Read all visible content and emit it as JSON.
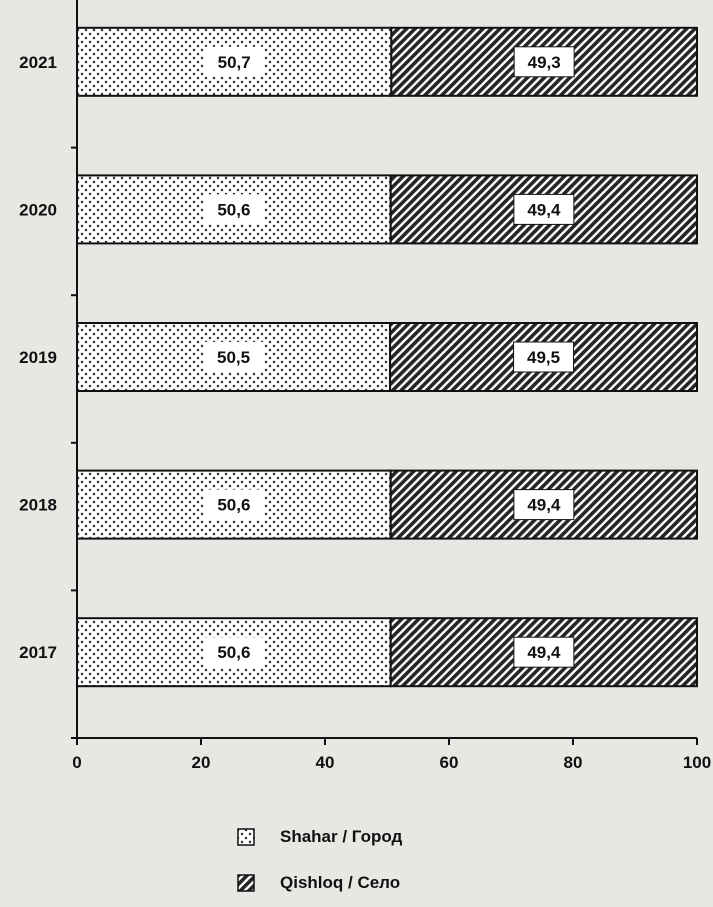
{
  "chart_data": {
    "type": "bar",
    "orientation": "horizontal",
    "stacked": true,
    "categories": [
      "2021",
      "2020",
      "2019",
      "2018",
      "2017"
    ],
    "series": [
      {
        "name": "Shahar / Город",
        "values": [
          50.7,
          50.6,
          50.5,
          50.6,
          50.6
        ],
        "labels": [
          "50,7",
          "50,6",
          "50,5",
          "50,6",
          "50,6"
        ],
        "pattern": "dots",
        "color": "#ffffff"
      },
      {
        "name": "Qishloq / Село",
        "values": [
          49.3,
          49.4,
          49.5,
          49.4,
          49.4
        ],
        "labels": [
          "49,3",
          "49,4",
          "49,5",
          "49,4",
          "49,4"
        ],
        "pattern": "hatch",
        "color": "#2a2a2a"
      }
    ],
    "xlim": [
      0,
      100
    ],
    "xticks": [
      0,
      20,
      40,
      60,
      80,
      100
    ],
    "xtick_labels": [
      "0",
      "20",
      "40",
      "60",
      "80",
      "100"
    ],
    "grid": false,
    "legend_position": "bottom"
  }
}
